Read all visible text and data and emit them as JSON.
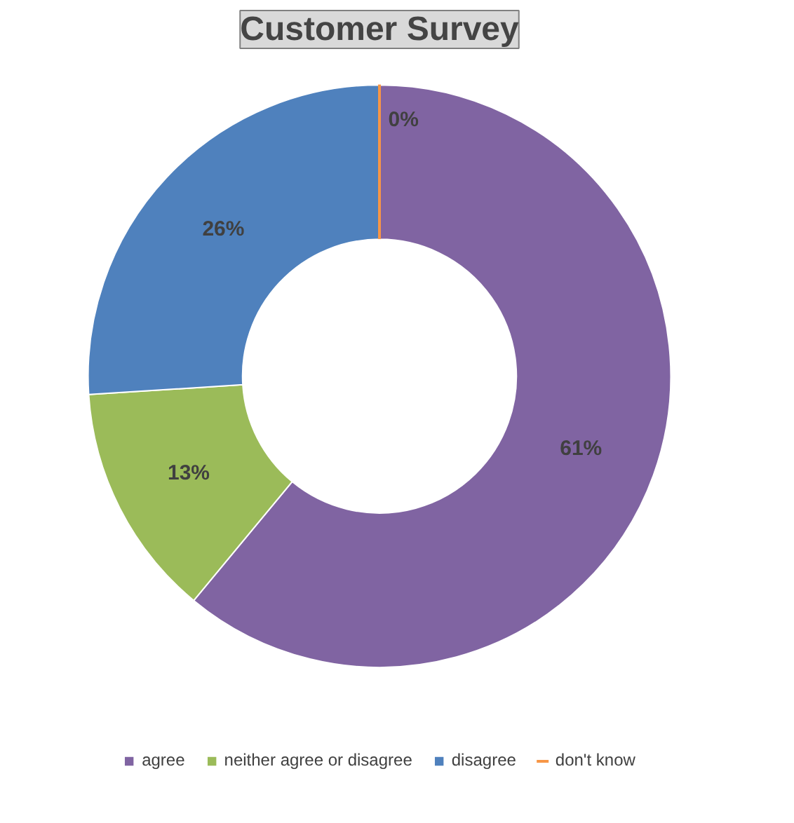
{
  "chart_data": {
    "type": "donut",
    "title": "Customer Survey",
    "categories": [
      "agree",
      "neither agree or disagree",
      "disagree",
      "don't know"
    ],
    "values": [
      61,
      13,
      26,
      0
    ],
    "colors": [
      "#8064a2",
      "#9bbb59",
      "#4f81bd",
      "#f79646"
    ],
    "value_labels": [
      "61%",
      "13%",
      "26%",
      "0%"
    ],
    "legend": "bottom"
  }
}
